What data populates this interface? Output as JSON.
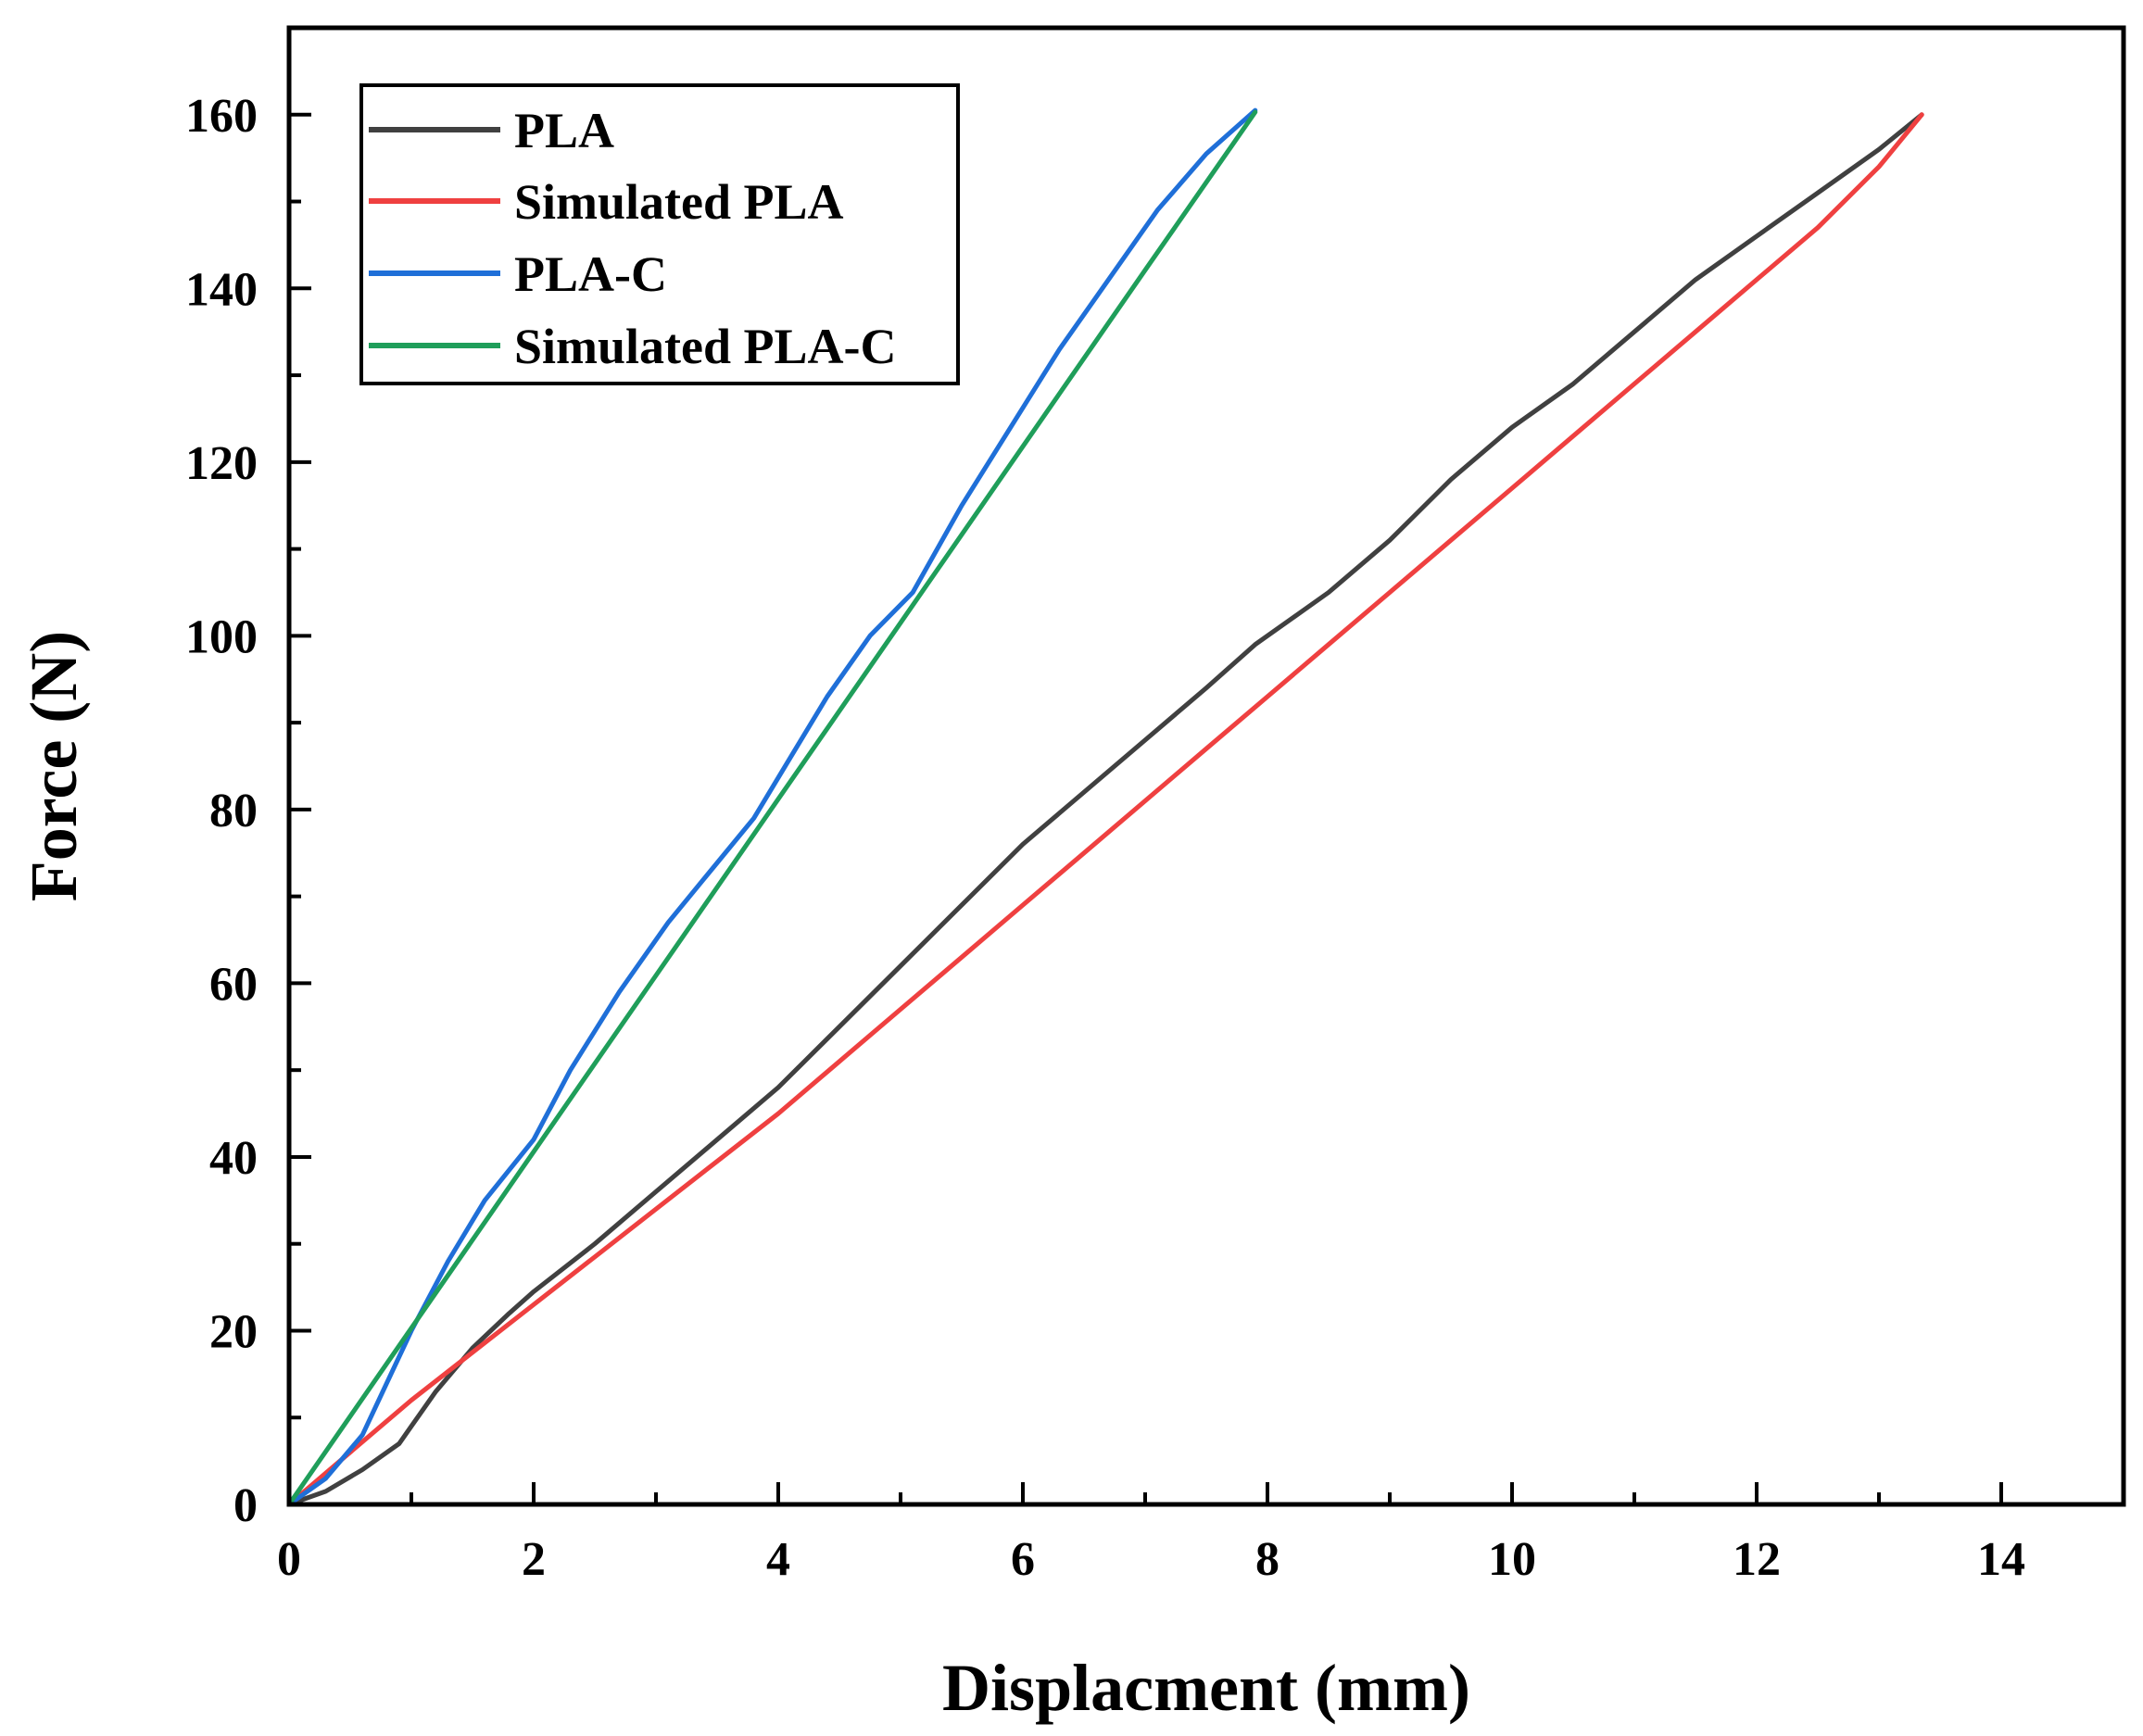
{
  "chart_data": {
    "type": "line",
    "title": "",
    "xlabel": "Displacment (mm)",
    "ylabel": "Force (N)",
    "xlim": [
      0,
      15
    ],
    "ylim": [
      0,
      170
    ],
    "xticks": [
      0,
      2,
      4,
      6,
      8,
      10,
      12,
      14
    ],
    "yticks": [
      0,
      20,
      40,
      60,
      80,
      100,
      120,
      140,
      160
    ],
    "x_minor_step": 1,
    "y_minor_step": 10,
    "legend_position": "top-left",
    "grid": false,
    "series": [
      {
        "name": "PLA",
        "color": "#404040",
        "x": [
          0,
          0.3,
          0.6,
          0.9,
          1.0,
          1.2,
          1.5,
          1.8,
          2.0,
          2.5,
          3.0,
          3.5,
          4.0,
          4.5,
          5.0,
          5.5,
          6.0,
          6.5,
          7.0,
          7.5,
          7.9,
          8.5,
          9.0,
          9.5,
          10.0,
          10.5,
          11.0,
          11.5,
          12.0,
          12.5,
          13.0,
          13.35
        ],
        "y": [
          0,
          1.5,
          4,
          7,
          9,
          13,
          18,
          22,
          24.5,
          30,
          36,
          42,
          48,
          55,
          62,
          69,
          76,
          82,
          88,
          94,
          99,
          105,
          111,
          118,
          124,
          129,
          135,
          141,
          146,
          151,
          156,
          160
        ]
      },
      {
        "name": "Simulated PLA",
        "color": "#ef4040",
        "x": [
          0,
          0.5,
          1.0,
          1.5,
          2.0,
          2.5,
          3.0,
          3.5,
          4.0,
          4.5,
          5.0,
          5.5,
          6.0,
          6.5,
          7.0,
          7.5,
          8.0,
          8.5,
          9.0,
          9.5,
          10.0,
          10.5,
          11.0,
          11.5,
          12.0,
          12.5,
          13.0,
          13.35
        ],
        "y": [
          0,
          6,
          12,
          17.5,
          23,
          28.5,
          34,
          39.5,
          45,
          51,
          57,
          63,
          69,
          75,
          81,
          87,
          93,
          99,
          105,
          111,
          117,
          123,
          129,
          135,
          141,
          147,
          154,
          160
        ]
      },
      {
        "name": "PLA-C",
        "color": "#1f6fd8",
        "x": [
          0,
          0.3,
          0.6,
          0.8,
          1.0,
          1.3,
          1.6,
          2.0,
          2.3,
          2.7,
          3.1,
          3.45,
          3.8,
          4.1,
          4.4,
          4.75,
          5.1,
          5.5,
          5.9,
          6.3,
          6.7,
          7.1,
          7.5,
          7.9
        ],
        "y": [
          0,
          3,
          8,
          14,
          20,
          28,
          35,
          42,
          50,
          59,
          67,
          73,
          79,
          86,
          93,
          100,
          105,
          115,
          124,
          133,
          141,
          149,
          155.5,
          160.5
        ]
      },
      {
        "name": "Simulated PLA-C",
        "color": "#1f9e5a",
        "x": [
          0,
          1.0,
          2.0,
          3.0,
          4.0,
          5.0,
          6.0,
          7.0,
          7.9
        ],
        "y": [
          0,
          20.3,
          40.6,
          60.9,
          81.2,
          101.5,
          121.8,
          142.1,
          160.3
        ]
      }
    ]
  }
}
